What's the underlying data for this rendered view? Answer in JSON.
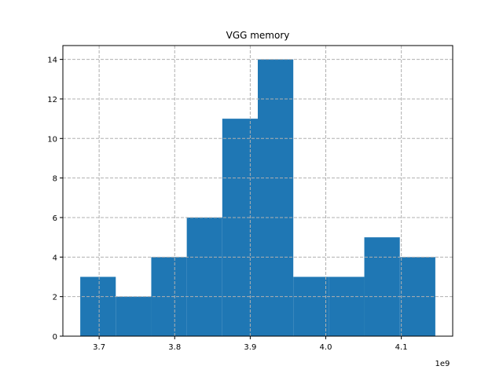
{
  "chart_data": {
    "type": "bar",
    "title": "VGG memory",
    "xlabel": "",
    "ylabel": "",
    "x_offset_label": "1e9",
    "bin_edges": [
      3.675,
      3.722,
      3.769,
      3.816,
      3.863,
      3.91,
      3.957,
      4.004,
      4.051,
      4.098,
      4.145
    ],
    "values": [
      3,
      2,
      4,
      6,
      11,
      14,
      3,
      3,
      5,
      4
    ],
    "xlim": [
      3.652,
      4.168
    ],
    "ylim": [
      0,
      14.7
    ],
    "xticks": [
      3.7,
      3.8,
      3.9,
      4.0,
      4.1
    ],
    "xtick_labels": [
      "3.7",
      "3.8",
      "3.9",
      "4.0",
      "4.1"
    ],
    "yticks": [
      0,
      2,
      4,
      6,
      8,
      10,
      12,
      14
    ],
    "ytick_labels": [
      "0",
      "2",
      "4",
      "6",
      "8",
      "10",
      "12",
      "14"
    ],
    "grid": true,
    "bar_color": "#1f77b4",
    "grid_color": "#b0b0b0"
  }
}
